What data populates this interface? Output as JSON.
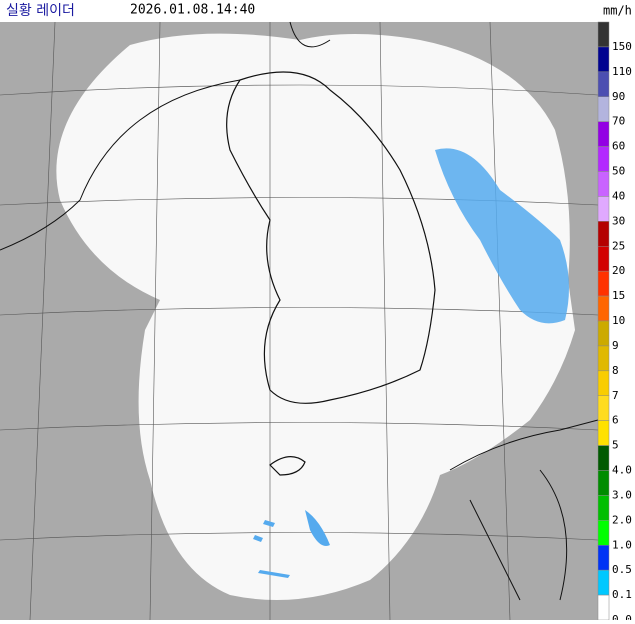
{
  "header": {
    "title": "실황 레이더",
    "timestamp": "2026.01.08.14:40"
  },
  "legend": {
    "unit": "mm/h",
    "levels": [
      {
        "label": "150",
        "color": "#333333"
      },
      {
        "label": "110",
        "color": "#000390"
      },
      {
        "label": "90",
        "color": "#4c4eb1"
      },
      {
        "label": "70",
        "color": "#b3b4de"
      },
      {
        "label": "60",
        "color": "#9300e4"
      },
      {
        "label": "50",
        "color": "#b329ff"
      },
      {
        "label": "40",
        "color": "#c963ff"
      },
      {
        "label": "30",
        "color": "#e0a9ff"
      },
      {
        "label": "25",
        "color": "#b40000"
      },
      {
        "label": "20",
        "color": "#d20000"
      },
      {
        "label": "15",
        "color": "#ff3200"
      },
      {
        "label": "10",
        "color": "#ff6600"
      },
      {
        "label": "9",
        "color": "#ccaa00"
      },
      {
        "label": "8",
        "color": "#e0b900"
      },
      {
        "label": "7",
        "color": "#f9cd00"
      },
      {
        "label": "6",
        "color": "#ffdc1f"
      },
      {
        "label": "5",
        "color": "#ffe100"
      },
      {
        "label": "4.0",
        "color": "#005a00"
      },
      {
        "label": "3.0",
        "color": "#008c00"
      },
      {
        "label": "2.0",
        "color": "#00be00"
      },
      {
        "label": "1.0",
        "color": "#00ff00"
      },
      {
        "label": "0.5",
        "color": "#0033f5"
      },
      {
        "label": "0.1",
        "color": "#00c8ff"
      },
      {
        "label": "0.0",
        "color": "#ffffff"
      }
    ]
  }
}
